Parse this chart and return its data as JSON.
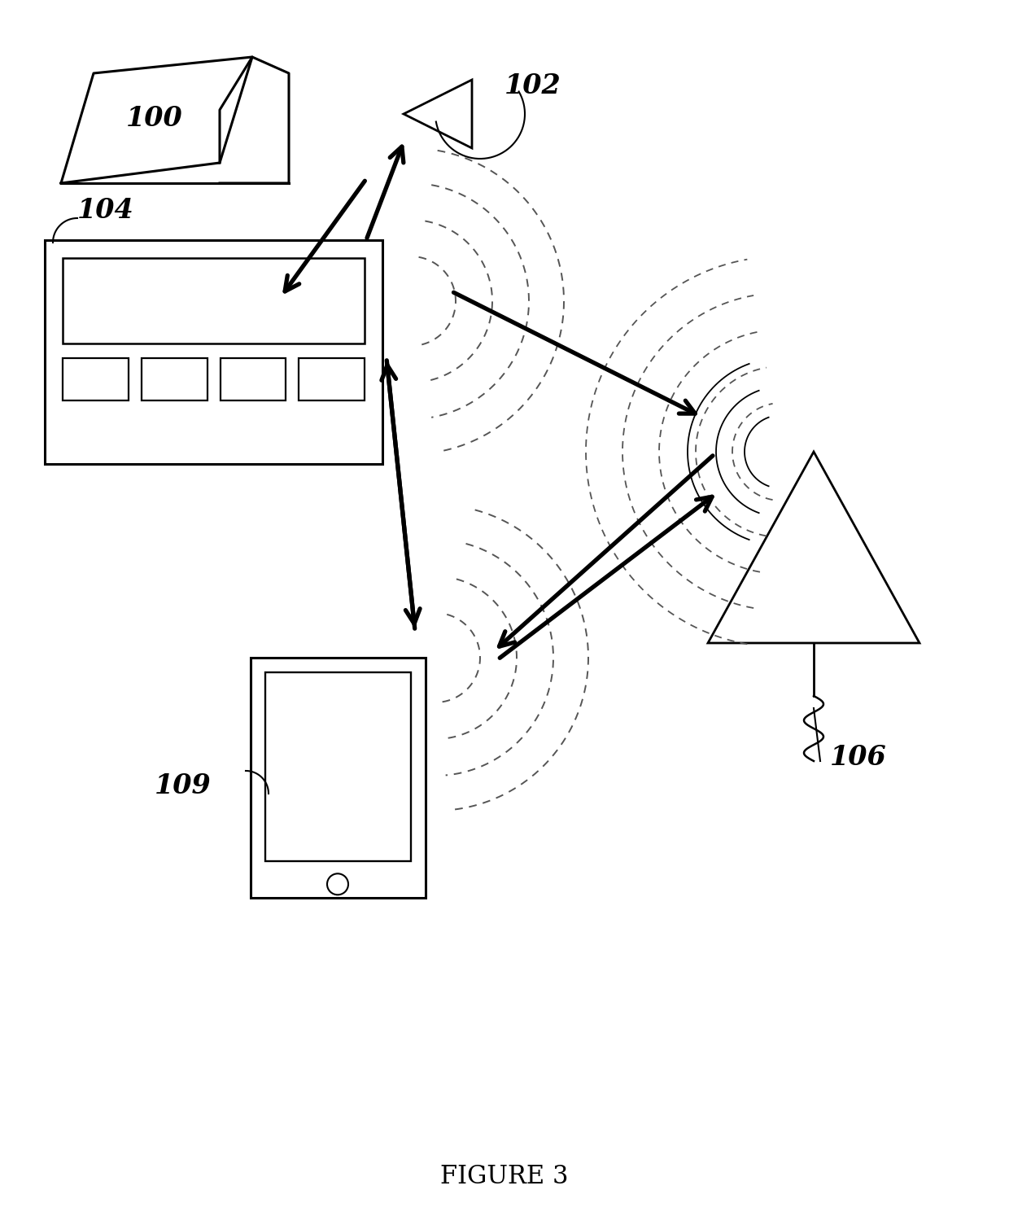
{
  "title": "FIGURE 3",
  "bg_color": "#ffffff",
  "label_100": "100",
  "label_102": "102",
  "label_104": "104",
  "label_106": "106",
  "label_109": "109",
  "arrow_color": "#000000",
  "line_color": "#000000",
  "wave_color": "#555555",
  "fig_width": 12.4,
  "fig_height": 15.05,
  "dpi": 100
}
